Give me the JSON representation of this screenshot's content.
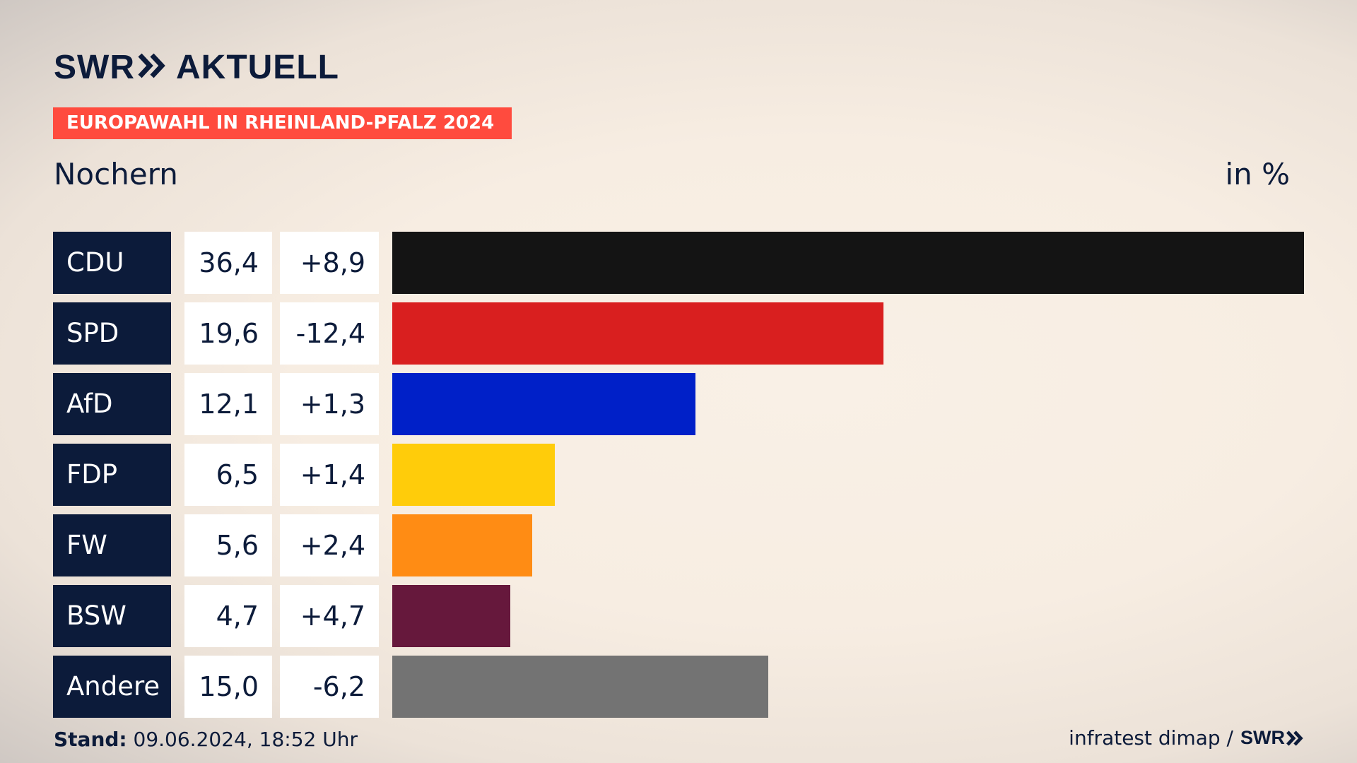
{
  "header": {
    "logo_left": "SWR",
    "logo_right": "AKTUELL",
    "banner": "EUROPAWAHL IN RHEINLAND-PFALZ 2024",
    "region": "Nochern",
    "unit": "in %"
  },
  "footer": {
    "stand_label": "Stand:",
    "stand_value": " 09.06.2024, 18:52 Uhr",
    "source": "infratest dimap /",
    "source_logo": "SWR"
  },
  "chart_data": {
    "type": "bar",
    "orientation": "horizontal",
    "title": "EUROPAWAHL IN RHEINLAND-PFALZ 2024",
    "subtitle": "Nochern",
    "unit": "in %",
    "categories": [
      "CDU",
      "SPD",
      "AfD",
      "FDP",
      "FW",
      "BSW",
      "Andere"
    ],
    "values": [
      36.4,
      19.6,
      12.1,
      6.5,
      5.6,
      4.7,
      15.0
    ],
    "value_labels": [
      "36,4",
      "19,6",
      "12,1",
      "6,5",
      "5,6",
      "4,7",
      "15,0"
    ],
    "diff_labels": [
      "+8,9",
      "-12,4",
      "+1,3",
      "+1,4",
      "+2,4",
      "+4,7",
      "-6,2"
    ],
    "colors": [
      "#141414",
      "#d91f1f",
      "#0020c8",
      "#ffcc0a",
      "#ff8c14",
      "#66183c",
      "#737373"
    ],
    "xlim": [
      0,
      36.4
    ]
  }
}
